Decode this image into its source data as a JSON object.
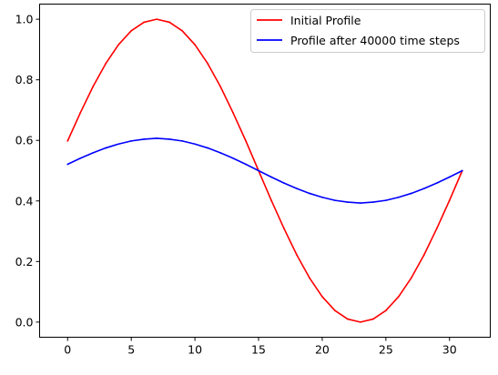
{
  "chart_data": {
    "type": "line",
    "title": "",
    "xlabel": "",
    "ylabel": "",
    "xlim": [
      -2.2,
      33.2
    ],
    "ylim": [
      -0.05,
      1.05
    ],
    "xticks": [
      0,
      5,
      10,
      15,
      20,
      25,
      30
    ],
    "xtick_labels": [
      "0",
      "5",
      "10",
      "15",
      "20",
      "25",
      "30"
    ],
    "yticks": [
      0.0,
      0.2,
      0.4,
      0.6,
      0.8,
      1.0
    ],
    "ytick_labels": [
      "0.0",
      "0.2",
      "0.4",
      "0.6",
      "0.8",
      "1.0"
    ],
    "grid": false,
    "legend_placement": "top-right",
    "x": [
      0,
      1,
      2,
      3,
      4,
      5,
      6,
      7,
      8,
      9,
      10,
      11,
      12,
      13,
      14,
      15,
      16,
      17,
      18,
      19,
      20,
      21,
      22,
      23,
      24,
      25,
      26,
      27,
      28,
      29,
      30,
      31
    ],
    "series": [
      {
        "name": "Initial Profile",
        "color": "#ff0000",
        "values": [
          0.598,
          0.691,
          0.778,
          0.854,
          0.916,
          0.962,
          0.99,
          1.0,
          0.99,
          0.962,
          0.916,
          0.854,
          0.778,
          0.691,
          0.598,
          0.5,
          0.402,
          0.309,
          0.222,
          0.146,
          0.084,
          0.038,
          0.01,
          0.0,
          0.01,
          0.038,
          0.084,
          0.146,
          0.222,
          0.309,
          0.402,
          0.5
        ]
      },
      {
        "name": "Profile after 40000 time steps",
        "color": "#0000ff",
        "values": [
          0.521,
          0.541,
          0.559,
          0.575,
          0.588,
          0.598,
          0.604,
          0.607,
          0.604,
          0.598,
          0.588,
          0.575,
          0.559,
          0.541,
          0.521,
          0.5,
          0.479,
          0.459,
          0.441,
          0.425,
          0.412,
          0.402,
          0.396,
          0.393,
          0.396,
          0.402,
          0.412,
          0.425,
          0.441,
          0.459,
          0.479,
          0.5
        ]
      }
    ]
  }
}
